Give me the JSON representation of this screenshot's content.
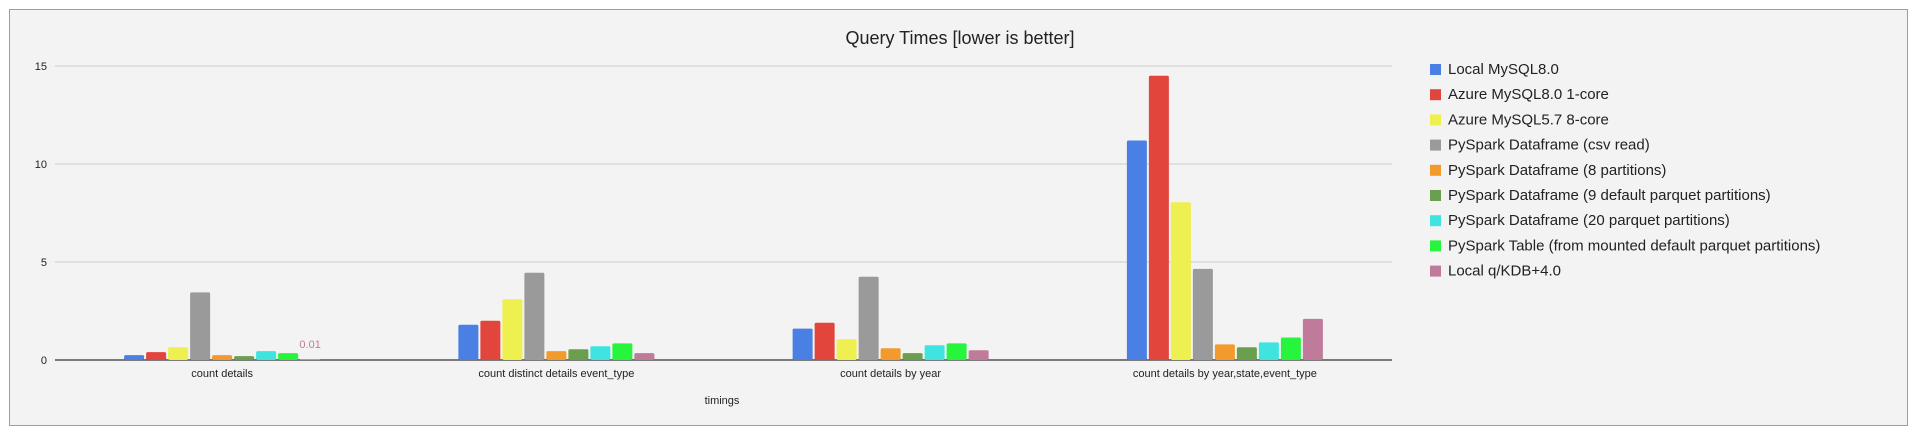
{
  "chart_data": {
    "type": "bar",
    "title": "Query Times [lower is better]",
    "xlabel": "timings",
    "ylabel": "",
    "ylim": [
      0,
      15
    ],
    "yticks": [
      0,
      5,
      10,
      15
    ],
    "grid": true,
    "legend_position": "right",
    "categories": [
      "count details",
      "count distinct details event_type",
      "count details by year",
      "count details by year,state,event_type"
    ],
    "series": [
      {
        "name": "Local MySQL8.0",
        "color": "#4a7fe3",
        "values": [
          0.25,
          1.8,
          1.6,
          11.2
        ]
      },
      {
        "name": "Azure MySQL8.0 1-core",
        "color": "#e2453c",
        "values": [
          0.4,
          2.0,
          1.9,
          14.5
        ]
      },
      {
        "name": "Azure MySQL5.7 8-core",
        "color": "#eef04f",
        "values": [
          0.65,
          3.1,
          1.05,
          8.05
        ]
      },
      {
        "name": "PySpark Dataframe (csv read)",
        "color": "#9a9a9a",
        "values": [
          3.45,
          4.45,
          4.25,
          4.65
        ]
      },
      {
        "name": "PySpark Dataframe (8 partitions)",
        "color": "#f39a2d",
        "values": [
          0.25,
          0.45,
          0.6,
          0.8
        ]
      },
      {
        "name": "PySpark Dataframe (9 default parquet partitions)",
        "color": "#6aa04d",
        "values": [
          0.2,
          0.55,
          0.35,
          0.65
        ]
      },
      {
        "name": "PySpark Dataframe (20 parquet partitions)",
        "color": "#3fe4e0",
        "values": [
          0.45,
          0.7,
          0.75,
          0.9
        ]
      },
      {
        "name": "PySpark Table (from mounted default parquet partitions)",
        "color": "#27f43c",
        "values": [
          0.35,
          0.85,
          0.85,
          1.15
        ]
      },
      {
        "name": "Local q/KDB+4.0",
        "color": "#c07a9a",
        "values": [
          0.01,
          0.35,
          0.5,
          2.1
        ]
      }
    ],
    "annotations": [
      "0.01"
    ]
  }
}
